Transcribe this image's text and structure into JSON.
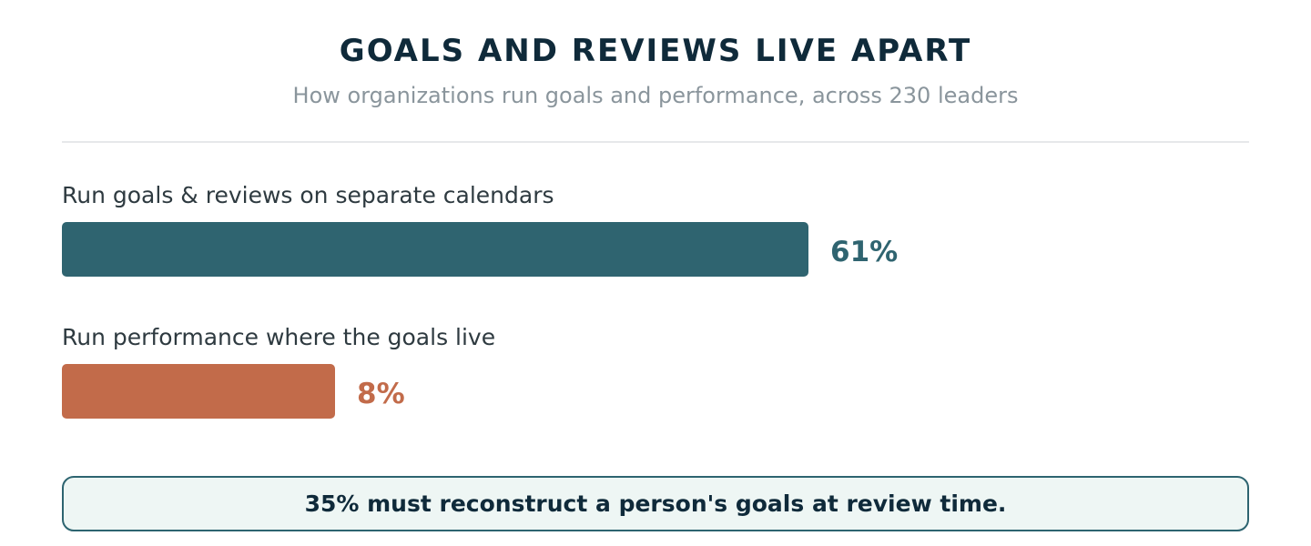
{
  "colors": {
    "title": "#0f2a3a",
    "series_1": "#2f6470",
    "series_2": "#c26b4a"
  },
  "header": {
    "title": "GOALS AND REVIEWS LIVE APART",
    "subtitle": "How organizations run goals and performance, across 230 leaders"
  },
  "chart_data": {
    "type": "bar",
    "orientation": "horizontal",
    "title": "GOALS AND REVIEWS LIVE APART",
    "subtitle": "How organizations run goals and performance, across 230 leaders",
    "categories": [
      "Run goals & reviews on separate calendars",
      "Run performance where the goals live"
    ],
    "values": [
      61,
      8
    ],
    "value_labels": [
      "61%",
      "8%"
    ],
    "unit": "%",
    "grid": false
  },
  "callout": {
    "text": "35% must reconstruct a person's goals at review time."
  }
}
